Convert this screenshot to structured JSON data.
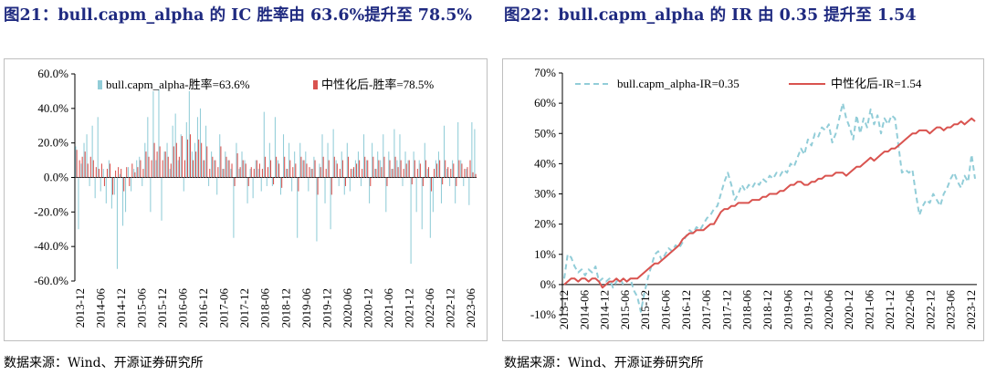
{
  "left": {
    "title": "图21：bull.capm_alpha 的 IC 胜率由 63.6%提升至 78.5%",
    "source": "数据来源：Wind、开源证券研究所"
  },
  "right": {
    "title": "图22：bull.capm_alpha 的 IR 由 0.35 提升至 1.54",
    "source": "数据来源：Wind、开源证券研究所"
  },
  "colors": {
    "series_a": "#92cdd8",
    "series_b": "#d9534f",
    "title": "#1f2a80",
    "axis": "#000000"
  },
  "chart_data": [
    {
      "type": "bar",
      "title": "",
      "ylim": [
        -0.6,
        0.6
      ],
      "yticks": [
        "60.0%",
        "40.0%",
        "20.0%",
        "0.0%",
        "-20.0%",
        "-40.0%",
        "-60.0%"
      ],
      "xticks": [
        "2013-12",
        "2014-06",
        "2014-12",
        "2015-06",
        "2015-12",
        "2016-06",
        "2016-12",
        "2017-06",
        "2017-12",
        "2018-06",
        "2018-12",
        "2019-06",
        "2019-12",
        "2020-06",
        "2020-12",
        "2021-06",
        "2021-12",
        "2022-06",
        "2022-12",
        "2023-06"
      ],
      "legend_position": "top",
      "series": [
        {
          "name": "bull.capm_alpha-胜率=63.6%",
          "values": [
            0.18,
            -0.3,
            0.08,
            0.2,
            0.25,
            -0.05,
            0.3,
            -0.12,
            0.35,
            -0.08,
            0.05,
            -0.15,
            0.1,
            -0.18,
            -0.1,
            -0.53,
            0.02,
            -0.28,
            -0.2,
            0.06,
            -0.08,
            0.05,
            0.1,
            0.12,
            -0.05,
            0.2,
            0.35,
            -0.2,
            0.5,
            0.1,
            0.51,
            -0.25,
            0.15,
            0.2,
            0.05,
            0.3,
            0.37,
            0.1,
            0.25,
            -0.08,
            0.32,
            0.5,
            0.15,
            0.2,
            0.35,
            0.4,
            0.1,
            0.3,
            -0.05,
            0.15,
            0.1,
            -0.1,
            0.25,
            0.05,
            0.15,
            0.1,
            0.05,
            -0.35,
            0.2,
            0.05,
            0.15,
            0.1,
            -0.15,
            0.05,
            -0.12,
            0.1,
            0.05,
            -0.08,
            0.38,
            -0.05,
            0.2,
            -0.05,
            0.35,
            0.1,
            -0.1,
            0.25,
            0.05,
            0.2,
            -0.08,
            0.15,
            -0.35,
            0.2,
            0.1,
            0.15,
            -0.08,
            0.05,
            0.12,
            -0.37,
            0.08,
            0.25,
            -0.15,
            0.2,
            -0.3,
            0.28,
            0.1,
            -0.05,
            0.15,
            -0.1,
            0.2,
            -0.08,
            0.05,
            0.1,
            0.15,
            -0.05,
            0.25,
            0.1,
            -0.15,
            0.2,
            0.05,
            0.15,
            0.1,
            0.25,
            -0.2,
            0.15,
            0.05,
            0.28,
            0.1,
            0.25,
            -0.05,
            0.15,
            0.1,
            -0.5,
            0.15,
            -0.2,
            0.1,
            -0.3,
            0.2,
            0.05,
            -0.35,
            -0.2,
            0.1,
            0.15,
            -0.15,
            0.3,
            0.05,
            -0.05,
            0.1,
            -0.15,
            0.32,
            0.1,
            -0.05,
            0.05,
            -0.16,
            0.32,
            0.28
          ]
        },
        {
          "name": "中性化后-胜率=78.5%",
          "values": [
            0.16,
            0.1,
            0.12,
            0.15,
            0.08,
            0.12,
            0.1,
            0.06,
            0.05,
            0.08,
            -0.05,
            0.05,
            0.08,
            -0.1,
            0.04,
            0.06,
            0.05,
            -0.08,
            0.06,
            -0.05,
            0.08,
            0.03,
            0.06,
            0.1,
            0.05,
            0.15,
            0.12,
            0.1,
            0.2,
            0.15,
            0.18,
            0.1,
            0.15,
            0.12,
            0.08,
            0.18,
            0.2,
            0.12,
            0.24,
            0.1,
            0.22,
            0.25,
            0.1,
            0.15,
            0.22,
            0.2,
            0.1,
            0.18,
            0.05,
            0.12,
            0.1,
            0.06,
            0.18,
            0.05,
            0.12,
            0.1,
            0.08,
            -0.05,
            0.14,
            0.06,
            0.1,
            0.08,
            -0.05,
            0.06,
            0.05,
            0.1,
            0.08,
            0.05,
            0.12,
            0.06,
            0.1,
            -0.04,
            0.12,
            0.08,
            -0.06,
            0.12,
            0.05,
            0.1,
            0.06,
            0.08,
            -0.08,
            0.12,
            0.1,
            0.08,
            0.06,
            0.05,
            0.1,
            -0.1,
            0.06,
            0.12,
            0.05,
            0.1,
            -0.1,
            0.12,
            0.08,
            0.05,
            0.1,
            -0.05,
            0.12,
            0.05,
            0.06,
            0.08,
            0.1,
            0.05,
            0.12,
            0.1,
            -0.05,
            0.12,
            0.05,
            0.1,
            0.06,
            0.12,
            -0.05,
            0.1,
            0.05,
            0.12,
            0.06,
            0.1,
            0.05,
            0.08,
            0.1,
            -0.04,
            0.1,
            0.05,
            0.08,
            -0.05,
            0.1,
            0.06,
            -0.08,
            0.05,
            0.08,
            0.1,
            -0.04,
            0.1,
            0.06,
            0.05,
            0.08,
            -0.05,
            0.1,
            0.08,
            0.05,
            0.06,
            0.1,
            0.03,
            0.02
          ]
        }
      ]
    },
    {
      "type": "line",
      "title": "",
      "ylim": [
        -0.1,
        0.7
      ],
      "yticks": [
        "70%",
        "60%",
        "50%",
        "40%",
        "30%",
        "20%",
        "10%",
        "0%",
        "-10%"
      ],
      "xticks": [
        "2013-12",
        "2014-06",
        "2014-12",
        "2015-06",
        "2015-12",
        "2016-06",
        "2016-12",
        "2017-06",
        "2017-12",
        "2018-06",
        "2018-12",
        "2019-06",
        "2019-12",
        "2020-06",
        "2020-12",
        "2021-06",
        "2021-12",
        "2022-06",
        "2022-12",
        "2023-06",
        "2023-12"
      ],
      "legend_position": "top",
      "series": [
        {
          "name": "bull.capm_alpha-IR=0.35",
          "style": "dashed",
          "values": [
            0.02,
            0.1,
            0.09,
            0.06,
            0.04,
            0.05,
            0.03,
            0.05,
            0.04,
            0.06,
            0.01,
            0.02,
            0.01,
            0.02,
            -0.01,
            0.01,
            0.02,
            0.0,
            0.01,
            0.02,
            -0.02,
            -0.04,
            -0.09,
            -0.03,
            0.02,
            0.06,
            0.1,
            0.11,
            0.08,
            0.1,
            0.12,
            0.11,
            0.13,
            0.12,
            0.14,
            0.16,
            0.18,
            0.17,
            0.19,
            0.18,
            0.2,
            0.22,
            0.23,
            0.25,
            0.26,
            0.3,
            0.34,
            0.37,
            0.33,
            0.28,
            0.3,
            0.33,
            0.31,
            0.33,
            0.32,
            0.34,
            0.33,
            0.35,
            0.34,
            0.36,
            0.35,
            0.37,
            0.36,
            0.38,
            0.37,
            0.4,
            0.39,
            0.42,
            0.45,
            0.43,
            0.48,
            0.46,
            0.5,
            0.49,
            0.52,
            0.51,
            0.53,
            0.47,
            0.5,
            0.55,
            0.6,
            0.55,
            0.52,
            0.48,
            0.56,
            0.5,
            0.55,
            0.52,
            0.58,
            0.53,
            0.56,
            0.5,
            0.55,
            0.53,
            0.56,
            0.55,
            0.46,
            0.37,
            0.38,
            0.37,
            0.38,
            0.3,
            0.23,
            0.26,
            0.28,
            0.27,
            0.3,
            0.28,
            0.26,
            0.3,
            0.32,
            0.35,
            0.37,
            0.34,
            0.32,
            0.36,
            0.34,
            0.43,
            0.35
          ]
        },
        {
          "name": "中性化后-IR=1.54",
          "style": "solid",
          "values": [
            0.0,
            0.01,
            0.02,
            0.02,
            0.01,
            0.02,
            0.02,
            0.01,
            0.02,
            0.02,
            0.01,
            -0.01,
            0.0,
            0.01,
            0.01,
            0.02,
            0.01,
            0.02,
            0.01,
            0.02,
            0.02,
            0.02,
            0.03,
            0.04,
            0.05,
            0.06,
            0.07,
            0.07,
            0.08,
            0.09,
            0.1,
            0.11,
            0.12,
            0.13,
            0.15,
            0.16,
            0.17,
            0.17,
            0.18,
            0.18,
            0.18,
            0.19,
            0.2,
            0.2,
            0.22,
            0.24,
            0.25,
            0.25,
            0.26,
            0.26,
            0.27,
            0.27,
            0.27,
            0.27,
            0.28,
            0.28,
            0.28,
            0.29,
            0.29,
            0.3,
            0.3,
            0.3,
            0.31,
            0.31,
            0.32,
            0.33,
            0.33,
            0.34,
            0.34,
            0.33,
            0.33,
            0.34,
            0.34,
            0.35,
            0.35,
            0.36,
            0.36,
            0.36,
            0.37,
            0.37,
            0.37,
            0.36,
            0.37,
            0.38,
            0.39,
            0.39,
            0.4,
            0.41,
            0.42,
            0.41,
            0.42,
            0.43,
            0.44,
            0.44,
            0.45,
            0.45,
            0.46,
            0.47,
            0.48,
            0.49,
            0.5,
            0.5,
            0.51,
            0.51,
            0.51,
            0.5,
            0.51,
            0.52,
            0.52,
            0.51,
            0.52,
            0.52,
            0.53,
            0.53,
            0.54,
            0.53,
            0.54,
            0.55,
            0.54
          ]
        }
      ]
    }
  ]
}
